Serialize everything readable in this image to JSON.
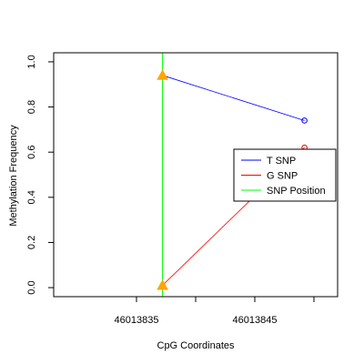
{
  "chart_data": {
    "type": "line",
    "title": "",
    "xlabel": "CpG Coordinates",
    "ylabel": "Methylation Frequency",
    "xlim": [
      46013828,
      46013852
    ],
    "ylim": [
      -0.04,
      1.04
    ],
    "x_ticks": [
      {
        "value": 46013835,
        "label": "46013835"
      },
      {
        "value": 46013845,
        "label": "46013845"
      }
    ],
    "x_minor_ticks": [
      46013840,
      46013850
    ],
    "y_ticks": [
      {
        "value": 0.0,
        "label": "0.0"
      },
      {
        "value": 0.2,
        "label": "0.2"
      },
      {
        "value": 0.4,
        "label": "0.4"
      },
      {
        "value": 0.6,
        "label": "0.6"
      },
      {
        "value": 0.8,
        "label": "0.8"
      },
      {
        "value": 1.0,
        "label": "1.0"
      }
    ],
    "series": [
      {
        "name": "T SNP",
        "color": "#0000ff",
        "points": [
          {
            "x": 46013837.2,
            "y": 0.94
          },
          {
            "x": 46013849.2,
            "y": 0.74
          }
        ]
      },
      {
        "name": "G SNP",
        "color": "#ff0000",
        "points": [
          {
            "x": 46013837.2,
            "y": 0.01
          },
          {
            "x": 46013849.2,
            "y": 0.62
          }
        ]
      }
    ],
    "snp_position": {
      "name": "SNP Position",
      "x": 46013837.2,
      "color": "#00ff00"
    },
    "snp_markers": [
      {
        "x": 46013837.2,
        "y": 0.94,
        "color": "#ffa500"
      },
      {
        "x": 46013837.2,
        "y": 0.01,
        "color": "#ffa500"
      }
    ],
    "legend": {
      "position": "right",
      "items": [
        {
          "label": "T SNP",
          "color": "#0000ff"
        },
        {
          "label": "G SNP",
          "color": "#ff0000"
        },
        {
          "label": "SNP Position",
          "color": "#00ff00"
        }
      ]
    },
    "grid": false
  }
}
